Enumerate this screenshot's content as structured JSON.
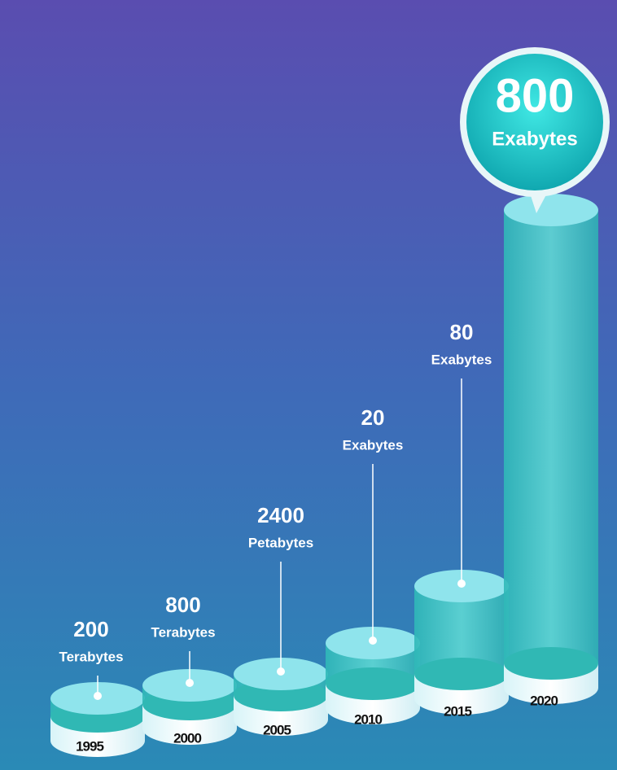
{
  "items": [
    {
      "year": "1995",
      "value": 200,
      "unit": "Terabytes"
    },
    {
      "year": "2000",
      "value": 800,
      "unit": "Terabytes"
    },
    {
      "year": "2005",
      "value": 2400,
      "unit": "Petabytes"
    },
    {
      "year": "2010",
      "value": 20,
      "unit": "Exabytes"
    },
    {
      "year": "2015",
      "value": 80,
      "unit": "Exabytes"
    },
    {
      "year": "2020",
      "value": 800,
      "unit": "Exabytes"
    }
  ]
}
